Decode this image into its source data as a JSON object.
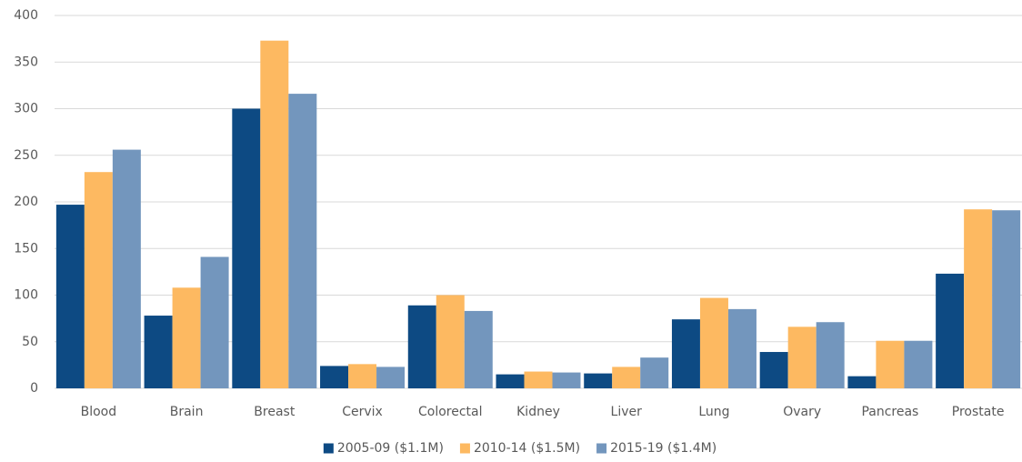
{
  "chart_data": {
    "type": "bar",
    "categories": [
      "Blood",
      "Brain",
      "Breast",
      "Cervix",
      "Colorectal",
      "Kidney",
      "Liver",
      "Lung",
      "Ovary",
      "Pancreas",
      "Prostate"
    ],
    "series": [
      {
        "name": "2005-09 ($1.1M)",
        "color": "#0d4a83",
        "values": [
          197,
          78,
          300,
          24,
          89,
          15,
          16,
          74,
          39,
          13,
          123
        ]
      },
      {
        "name": "2010-14 ($1.5M)",
        "color": "#fdb961",
        "values": [
          232,
          108,
          373,
          26,
          100,
          18,
          23,
          97,
          66,
          51,
          192
        ]
      },
      {
        "name": "2015-19 ($1.4M)",
        "color": "#7396bd",
        "values": [
          256,
          141,
          316,
          23,
          83,
          17,
          33,
          85,
          71,
          51,
          191
        ]
      }
    ],
    "ylim": [
      0,
      400
    ],
    "yticks": [
      0,
      50,
      100,
      150,
      200,
      250,
      300,
      350,
      400
    ],
    "grid": true,
    "legend": "bottom"
  }
}
